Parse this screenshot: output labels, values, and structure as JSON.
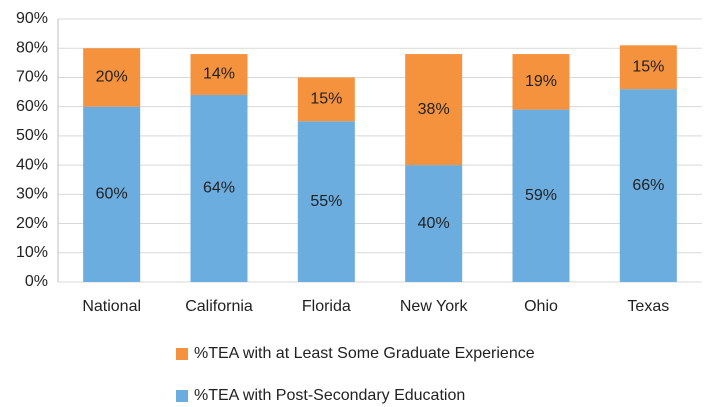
{
  "chart_data": {
    "type": "stacked_bar",
    "categories": [
      "National",
      "California",
      "Florida",
      "New York",
      "Ohio",
      "Texas"
    ],
    "series": [
      {
        "name": "%TEA with Post-Secondary Education",
        "color": "#6cade0",
        "values": [
          60,
          64,
          55,
          40,
          59,
          66
        ],
        "value_labels": [
          "60%",
          "64%",
          "55%",
          "40%",
          "59%",
          "66%"
        ]
      },
      {
        "name": "%TEA with at Least Some Graduate Experience",
        "color": "#f5923e",
        "values": [
          20,
          14,
          15,
          38,
          19,
          15
        ],
        "value_labels": [
          "20%",
          "14%",
          "15%",
          "38%",
          "19%",
          "15%"
        ]
      }
    ],
    "ylim": [
      0,
      90
    ],
    "yticks": [
      {
        "value": 0,
        "label": "0%"
      },
      {
        "value": 10,
        "label": "10%"
      },
      {
        "value": 20,
        "label": "20%"
      },
      {
        "value": 30,
        "label": "30%"
      },
      {
        "value": 40,
        "label": "40%"
      },
      {
        "value": 50,
        "label": "50%"
      },
      {
        "value": 60,
        "label": "60%"
      },
      {
        "value": 70,
        "label": "70%"
      },
      {
        "value": 80,
        "label": "80%"
      },
      {
        "value": 90,
        "label": "90%"
      }
    ],
    "grid": true,
    "legend": "bottom"
  }
}
